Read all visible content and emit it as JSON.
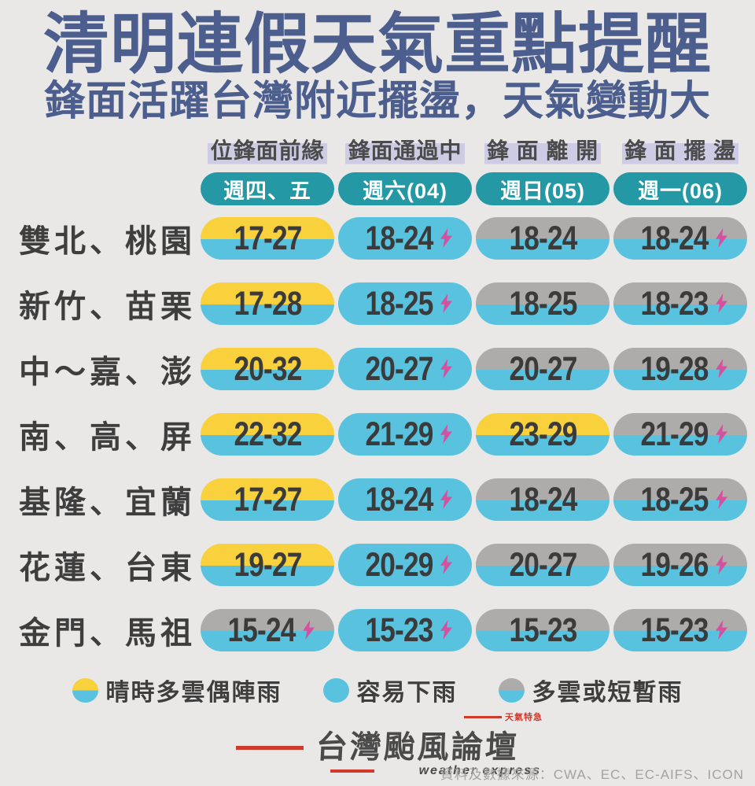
{
  "title": "清明連假天氣重點提醒",
  "subtitle": "鋒面活躍台灣附近擺盪，天氣變動大",
  "chart_data": {
    "type": "table",
    "columns": [
      {
        "phase": "位鋒面前緣",
        "day": "週四、五"
      },
      {
        "phase": "鋒面通過中",
        "day": "週六(04)"
      },
      {
        "phase": "鋒 面 離 開",
        "day": "週日(05)"
      },
      {
        "phase": "鋒 面 擺 盪",
        "day": "週一(06)"
      }
    ],
    "rows": [
      {
        "region": "雙北、桃園",
        "cells": [
          {
            "temp": "17-27",
            "condition": "sun",
            "thunder": false
          },
          {
            "temp": "18-24",
            "condition": "rain",
            "thunder": true
          },
          {
            "temp": "18-24",
            "condition": "cloud",
            "thunder": false
          },
          {
            "temp": "18-24",
            "condition": "cloud",
            "thunder": true
          }
        ]
      },
      {
        "region": "新竹、苗栗",
        "cells": [
          {
            "temp": "17-28",
            "condition": "sun",
            "thunder": false
          },
          {
            "temp": "18-25",
            "condition": "rain",
            "thunder": true
          },
          {
            "temp": "18-25",
            "condition": "cloud",
            "thunder": false
          },
          {
            "temp": "18-23",
            "condition": "cloud",
            "thunder": true
          }
        ]
      },
      {
        "region": "中～嘉、澎",
        "cells": [
          {
            "temp": "20-32",
            "condition": "sun",
            "thunder": false
          },
          {
            "temp": "20-27",
            "condition": "rain",
            "thunder": true
          },
          {
            "temp": "20-27",
            "condition": "cloud",
            "thunder": false
          },
          {
            "temp": "19-28",
            "condition": "cloud",
            "thunder": true
          }
        ]
      },
      {
        "region": "南、高、屏",
        "cells": [
          {
            "temp": "22-32",
            "condition": "sun",
            "thunder": false
          },
          {
            "temp": "21-29",
            "condition": "rain",
            "thunder": true
          },
          {
            "temp": "23-29",
            "condition": "sun",
            "thunder": false
          },
          {
            "temp": "21-29",
            "condition": "cloud",
            "thunder": true
          }
        ]
      },
      {
        "region": "基隆、宜蘭",
        "cells": [
          {
            "temp": "17-27",
            "condition": "sun",
            "thunder": false
          },
          {
            "temp": "18-24",
            "condition": "rain",
            "thunder": true
          },
          {
            "temp": "18-24",
            "condition": "cloud",
            "thunder": false
          },
          {
            "temp": "18-25",
            "condition": "cloud",
            "thunder": true
          }
        ]
      },
      {
        "region": "花蓮、台東",
        "cells": [
          {
            "temp": "19-27",
            "condition": "sun",
            "thunder": false
          },
          {
            "temp": "20-29",
            "condition": "rain",
            "thunder": true
          },
          {
            "temp": "20-27",
            "condition": "cloud",
            "thunder": false
          },
          {
            "temp": "19-26",
            "condition": "cloud",
            "thunder": true
          }
        ]
      },
      {
        "region": "金門、馬祖",
        "cells": [
          {
            "temp": "15-24",
            "condition": "cloud",
            "thunder": true
          },
          {
            "temp": "15-23",
            "condition": "rain",
            "thunder": true
          },
          {
            "temp": "15-23",
            "condition": "cloud",
            "thunder": false
          },
          {
            "temp": "15-23",
            "condition": "cloud",
            "thunder": true
          }
        ]
      }
    ]
  },
  "legend": [
    {
      "condition": "sun",
      "label": "晴時多雲偶陣雨"
    },
    {
      "condition": "rain",
      "label": "容易下雨"
    },
    {
      "condition": "cloud",
      "label": "多雲或短暫雨"
    }
  ],
  "footer": {
    "logo_tagline": "天氣特急",
    "logo_main": "台灣颱風論壇",
    "logo_sub": "weather express",
    "source": "資料及數據來源：CWA、EC、EC-AIFS、ICON"
  },
  "colors": {
    "background": "#E9E8E6",
    "title_blue": "#4C5E8E",
    "teal": "#2498A4",
    "sun_yellow": "#F8D13C",
    "rain_blue": "#59C3DF",
    "cloud_gray": "#ADACAB",
    "lightning_pink": "#D5509E",
    "highlight_lavender": "#CECBE4",
    "logo_red": "#CE3A2C",
    "text_dark": "#3B3B3B"
  }
}
